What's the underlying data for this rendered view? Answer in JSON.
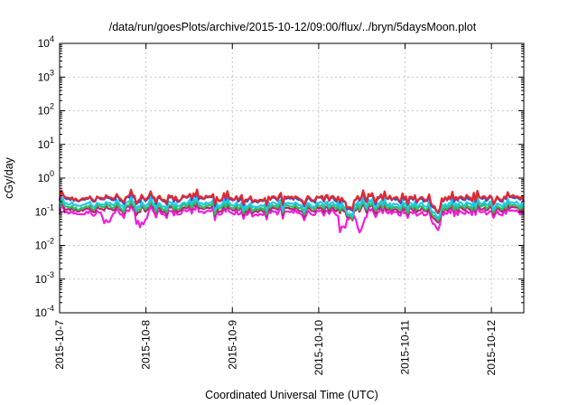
{
  "chart_data": {
    "type": "line",
    "title": "/data/run/goesPlots/archive/2015-10-12/09:00/flux/../bryn/5daysMoon.plot",
    "xlabel": "Coordinated Universal Time (UTC)",
    "ylabel": "cGy/day",
    "xlim": [
      "2015-10-07T00:00",
      "2015-10-12T09:00"
    ],
    "x_ticks": [
      "2015-10-7",
      "2015-10-8",
      "2015-10-9",
      "2015-10-10",
      "2015-10-11",
      "2015-10-12"
    ],
    "y_scale": "log",
    "ylim": [
      0.0001,
      10000
    ],
    "y_ticks": [
      {
        "base": "10",
        "exp": "4"
      },
      {
        "base": "10",
        "exp": "3"
      },
      {
        "base": "10",
        "exp": "2"
      },
      {
        "base": "10",
        "exp": "1"
      },
      {
        "base": "10",
        "exp": "0"
      },
      {
        "base": "10",
        "exp": "-1"
      },
      {
        "base": "10",
        "exp": "-2"
      },
      {
        "base": "10",
        "exp": "-3"
      },
      {
        "base": "10",
        "exp": "-4"
      }
    ],
    "grid": true,
    "series": [
      {
        "color": "#e8262a",
        "level": 0.26,
        "dips": [
          {
            "day": 3.35,
            "factor": 0.55
          },
          {
            "day": 4.35,
            "factor": 0.6
          }
        ]
      },
      {
        "color": "#2f4fd8",
        "level": 0.24,
        "dips": [
          {
            "day": 3.35,
            "factor": 0.55
          },
          {
            "day": 4.35,
            "factor": 0.6
          }
        ]
      },
      {
        "color": "#22c8e6",
        "level": 0.17,
        "dips": [
          {
            "day": 3.35,
            "factor": 0.55
          },
          {
            "day": 4.35,
            "factor": 0.6
          }
        ]
      },
      {
        "color": "#2fbf5a",
        "level": 0.14,
        "dips": [
          {
            "day": 3.35,
            "factor": 0.6
          },
          {
            "day": 4.35,
            "factor": 0.6
          }
        ]
      },
      {
        "color": "#b4246b",
        "level": 0.12,
        "dips": [
          {
            "day": 3.35,
            "factor": 0.6
          },
          {
            "day": 4.35,
            "factor": 0.6
          }
        ]
      },
      {
        "color": "#f01ee0",
        "level": 0.095,
        "dips": [
          {
            "day": 0.55,
            "factor": 0.5
          },
          {
            "day": 0.95,
            "factor": 0.45
          },
          {
            "day": 3.28,
            "factor": 0.35
          },
          {
            "day": 3.48,
            "factor": 0.3
          },
          {
            "day": 4.35,
            "factor": 0.5
          }
        ]
      }
    ]
  }
}
